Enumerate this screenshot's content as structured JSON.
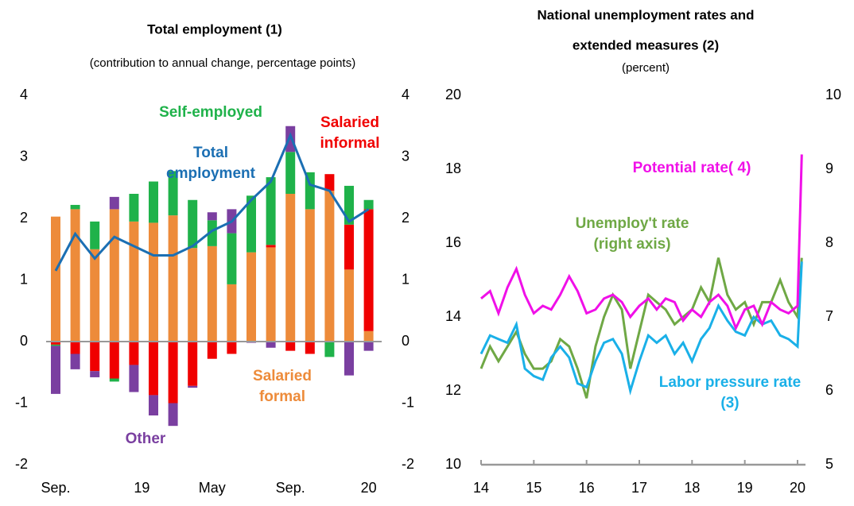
{
  "chart_data": [
    {
      "type": "bar",
      "stacked": true,
      "title": "Total employment (1)",
      "subtitle": "(contribution to annual change, percentage points)",
      "categories": [
        "Sep.",
        null,
        null,
        null,
        "19",
        null,
        null,
        null,
        "May",
        null,
        null,
        null,
        "Sep.",
        null,
        null,
        null,
        "20"
      ],
      "series": [
        {
          "name": "Salaried formal",
          "color": "#ed8b3a",
          "values": [
            2.03,
            2.15,
            1.5,
            2.15,
            1.95,
            1.93,
            2.05,
            1.52,
            1.55,
            0.93,
            1.45,
            1.53,
            2.4,
            2.15,
            2.45,
            1.17,
            0.17
          ]
        },
        {
          "name": "Salaried informal",
          "color": "#f00000",
          "values": [
            -0.05,
            -0.2,
            -0.48,
            -0.6,
            -0.38,
            -0.87,
            -1.0,
            -0.72,
            -0.28,
            -0.2,
            0,
            0.04,
            -0.15,
            -0.2,
            0.27,
            0.73,
            1.98
          ]
        },
        {
          "name": "Self-employed",
          "color": "#1fb24a",
          "values": [
            -0.02,
            0.07,
            0.45,
            -0.05,
            0.45,
            0.67,
            0.72,
            0.78,
            0.42,
            0.83,
            0.92,
            1.1,
            0.68,
            0.6,
            -0.25,
            0.63,
            0.15
          ]
        },
        {
          "name": "Other",
          "color": "#7a3fa0",
          "values": [
            -0.78,
            -0.25,
            -0.1,
            0.2,
            -0.44,
            -0.33,
            -0.37,
            -0.03,
            0.13,
            0.39,
            -0.02,
            -0.1,
            0.42,
            0,
            0,
            -0.55,
            -0.15
          ]
        },
        {
          "name": "Total employment",
          "color": "#1b6fb3",
          "type": "line",
          "values": [
            1.15,
            1.75,
            1.35,
            1.7,
            1.55,
            1.4,
            1.4,
            1.55,
            1.8,
            1.95,
            2.3,
            2.6,
            3.35,
            2.55,
            2.45,
            1.95,
            2.15
          ]
        }
      ],
      "ylim": [
        -2,
        4
      ],
      "yticks": [
        -2,
        -1,
        0,
        1,
        2,
        3,
        4
      ],
      "annotations": [
        {
          "text": [
            "Self-employed"
          ],
          "color": "#1fb24a"
        },
        {
          "text": [
            "Salaried",
            "informal"
          ],
          "color": "#f00000"
        },
        {
          "text": [
            "Total",
            "employment"
          ],
          "color": "#1b6fb3"
        },
        {
          "text": [
            "Salaried",
            "formal"
          ],
          "color": "#ed8b3a"
        },
        {
          "text": [
            "Other"
          ],
          "color": "#7a3fa0"
        }
      ]
    },
    {
      "type": "line",
      "title": [
        "National unemployment rates and",
        "extended measures (2)"
      ],
      "subtitle": "(percent)",
      "x": [
        14,
        14.17,
        14.33,
        14.5,
        14.67,
        14.83,
        15,
        15.17,
        15.33,
        15.5,
        15.67,
        15.83,
        16,
        16.17,
        16.33,
        16.5,
        16.67,
        16.83,
        17,
        17.17,
        17.33,
        17.5,
        17.67,
        17.83,
        18,
        18.17,
        18.33,
        18.5,
        18.67,
        18.83,
        19,
        19.17,
        19.33,
        19.5,
        19.67,
        19.83,
        20,
        20.08
      ],
      "series": [
        {
          "name": "Potential rate( 4)",
          "color": "#f010e8",
          "values": [
            14.5,
            14.7,
            14.1,
            14.8,
            15.3,
            14.6,
            14.1,
            14.3,
            14.2,
            14.6,
            15.1,
            14.7,
            14.1,
            14.2,
            14.5,
            14.6,
            14.4,
            14.0,
            14.3,
            14.5,
            14.2,
            14.5,
            14.4,
            13.9,
            14.2,
            14.0,
            14.4,
            14.6,
            14.3,
            13.7,
            14.2,
            14.3,
            13.8,
            14.4,
            14.2,
            14.1,
            14.3,
            18.4
          ]
        },
        {
          "name": "Labor pressure rate (3)",
          "color": "#1ab0e8",
          "values": [
            13.0,
            13.5,
            13.4,
            13.3,
            13.8,
            12.6,
            12.4,
            12.3,
            12.9,
            13.2,
            12.9,
            12.2,
            12.1,
            12.8,
            13.3,
            13.4,
            13.0,
            12.0,
            12.8,
            13.5,
            13.3,
            13.5,
            13.0,
            13.3,
            12.8,
            13.4,
            13.7,
            14.3,
            13.9,
            13.6,
            13.5,
            14.0,
            13.8,
            13.9,
            13.5,
            13.4,
            13.2,
            15.5
          ]
        },
        {
          "name": "Unemploy't rate (right axis)",
          "color": "#6fa845",
          "axis": "y2",
          "values": [
            6.3,
            6.6,
            6.4,
            6.6,
            6.8,
            6.5,
            6.3,
            6.3,
            6.4,
            6.7,
            6.6,
            6.3,
            5.9,
            6.6,
            7.0,
            7.3,
            7.1,
            6.3,
            6.8,
            7.3,
            7.2,
            7.1,
            6.9,
            7.0,
            7.1,
            7.4,
            7.2,
            7.8,
            7.3,
            7.1,
            7.2,
            6.9,
            7.2,
            7.2,
            7.5,
            7.2,
            7.0,
            7.8
          ]
        }
      ],
      "xlim": [
        14,
        20.1
      ],
      "xticks": [
        14,
        15,
        16,
        17,
        18,
        19,
        20
      ],
      "ylim": [
        10,
        20
      ],
      "yticks": [
        10,
        12,
        14,
        16,
        18,
        20
      ],
      "y2lim": [
        5,
        10
      ],
      "y2ticks": [
        5,
        6,
        7,
        8,
        9,
        10
      ],
      "annotations": [
        {
          "text": [
            "Potential rate( 4)"
          ],
          "color": "#f010e8"
        },
        {
          "text": [
            "Unemploy't rate",
            "(right axis)"
          ],
          "color": "#6fa845"
        },
        {
          "text": [
            "Labor pressure rate",
            "(3)"
          ],
          "color": "#1ab0e8"
        }
      ]
    }
  ]
}
